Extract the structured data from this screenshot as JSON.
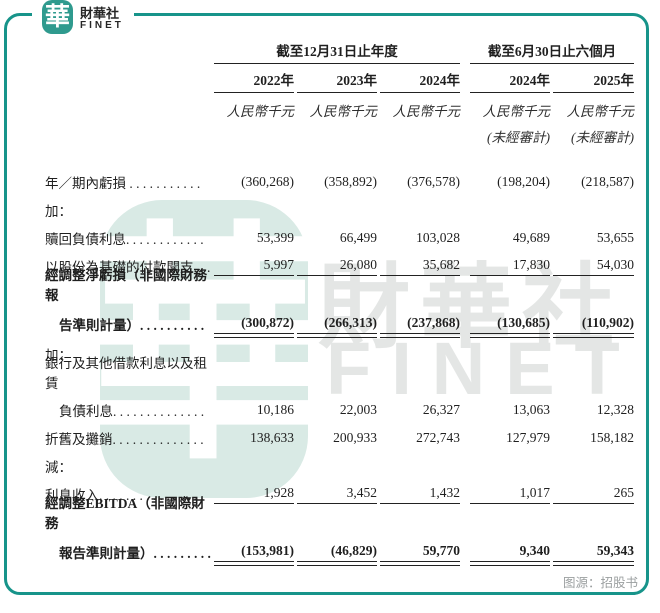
{
  "logo": {
    "glyph": "華",
    "name_cn": "財華社",
    "name_en": "FINET"
  },
  "watermark": {
    "glyph": "華",
    "text_cn": "財華社",
    "text_en": "FINET"
  },
  "colors": {
    "frame_teal": "#17948a",
    "logo_teal": "#2f9a8e",
    "watermark_teal": "#d9eae5",
    "watermark_gray": "#e4e6e5",
    "text": "#1f1f1f",
    "muted": "#9b9fa0"
  },
  "header": {
    "group1": "截至12月31日止年度",
    "group2": "截至6月30日止六個月",
    "years": [
      "2022年",
      "2023年",
      "2024年",
      "2024年",
      "2025年"
    ],
    "unit": "人民幣千元",
    "unaudited": "(未經審計)"
  },
  "table": {
    "rows": [
      {
        "label": "年／期內虧損 . . . . . . . . . . .",
        "values": [
          "(360,268)",
          "(358,892)",
          "(376,578)",
          "(198,204)",
          "(218,587)"
        ]
      },
      {
        "label": "加："
      },
      {
        "label": "贖回負債利息. . . . . . . . . . . .",
        "values": [
          "53,399",
          "66,499",
          "103,028",
          "49,689",
          "53,655"
        ]
      },
      {
        "label": "以股份為基礎的付款開支. . .",
        "values": [
          "5,997",
          "26,080",
          "35,682",
          "17,830",
          "54,030"
        ],
        "underline": "single"
      },
      {
        "label_line1": "經調整淨虧損（非國際財務報",
        "label_line2": "告準則計量）. . . . . . . . . .",
        "values": [
          "(300,872)",
          "(266,313)",
          "(237,868)",
          "(130,685)",
          "(110,902)"
        ],
        "bold": true,
        "underline": "double"
      },
      {
        "label": "加："
      },
      {
        "label_line1": "銀行及其他借款利息以及租賃",
        "label_line2": "負債利息. . . . . . . . . . . . . .",
        "values": [
          "10,186",
          "22,003",
          "26,327",
          "13,063",
          "12,328"
        ]
      },
      {
        "label": "折舊及攤銷. . . . . . . . . . . . . .",
        "values": [
          "138,633",
          "200,933",
          "272,743",
          "127,979",
          "158,182"
        ]
      },
      {
        "label": "減："
      },
      {
        "label": "利息收入. . . . . . . . . . . . . . . .",
        "values": [
          "1,928",
          "3,452",
          "1,432",
          "1,017",
          "265"
        ],
        "underline": "single"
      },
      {
        "label_line1": "經調整EBITDA（非國際財務",
        "label_line2": "報告準則計量）. . . . . . . . .",
        "values": [
          "(153,981)",
          "(46,829)",
          "59,770",
          "9,340",
          "59,343"
        ],
        "bold": true,
        "underline": "double"
      }
    ]
  },
  "source": {
    "label": "图源：招股书"
  }
}
